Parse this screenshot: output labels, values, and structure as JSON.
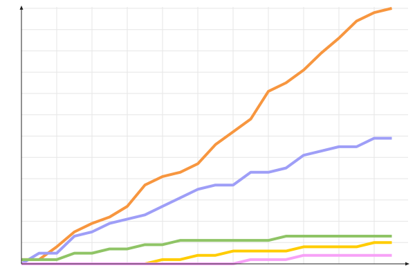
{
  "chart_data": {
    "type": "line",
    "title": "",
    "xlabel": "",
    "ylabel": "",
    "x": [
      0,
      1,
      2,
      3,
      4,
      5,
      6,
      7,
      8,
      9,
      10,
      11,
      12,
      13,
      14,
      15,
      16,
      17,
      18,
      19,
      20,
      21
    ],
    "xlim": [
      0,
      22
    ],
    "ylim": [
      0,
      60
    ],
    "grid": true,
    "legend": "none",
    "series": [
      {
        "color": "#f7963f",
        "values": [
          1,
          1,
          4,
          7.5,
          9.5,
          11,
          13.5,
          18.5,
          20.5,
          21.5,
          23.5,
          28,
          31,
          34,
          40.5,
          42.5,
          45.5,
          49.5,
          53,
          57,
          59,
          60
        ]
      },
      {
        "color": "#9e9ef7",
        "values": [
          0,
          2.5,
          2.5,
          6.5,
          7.5,
          9.5,
          10.5,
          11.5,
          13.5,
          15.5,
          17.5,
          18.5,
          18.5,
          21.5,
          21.5,
          22.5,
          25.5,
          26.5,
          27.5,
          27.5,
          29.5,
          29.5
        ]
      },
      {
        "color": "#8fc466",
        "values": [
          1,
          1,
          1,
          2.5,
          2.5,
          3.5,
          3.5,
          4.5,
          4.5,
          5.5,
          5.5,
          5.5,
          5.5,
          5.5,
          5.5,
          6.5,
          6.5,
          6.5,
          6.5,
          6.5,
          6.5,
          6.5
        ]
      },
      {
        "color": "#ffcc00",
        "values": [
          0,
          0,
          0,
          0,
          0,
          0,
          0,
          0,
          1,
          1,
          2,
          2,
          3,
          3,
          3,
          3,
          4,
          4,
          4,
          4,
          5,
          5
        ]
      },
      {
        "color": "#f7a1f7",
        "values": [
          0,
          0,
          0,
          0,
          0,
          0,
          0,
          0,
          0,
          0,
          0,
          0,
          0,
          1,
          1,
          1,
          2,
          2,
          2,
          2,
          2,
          2
        ]
      }
    ]
  }
}
